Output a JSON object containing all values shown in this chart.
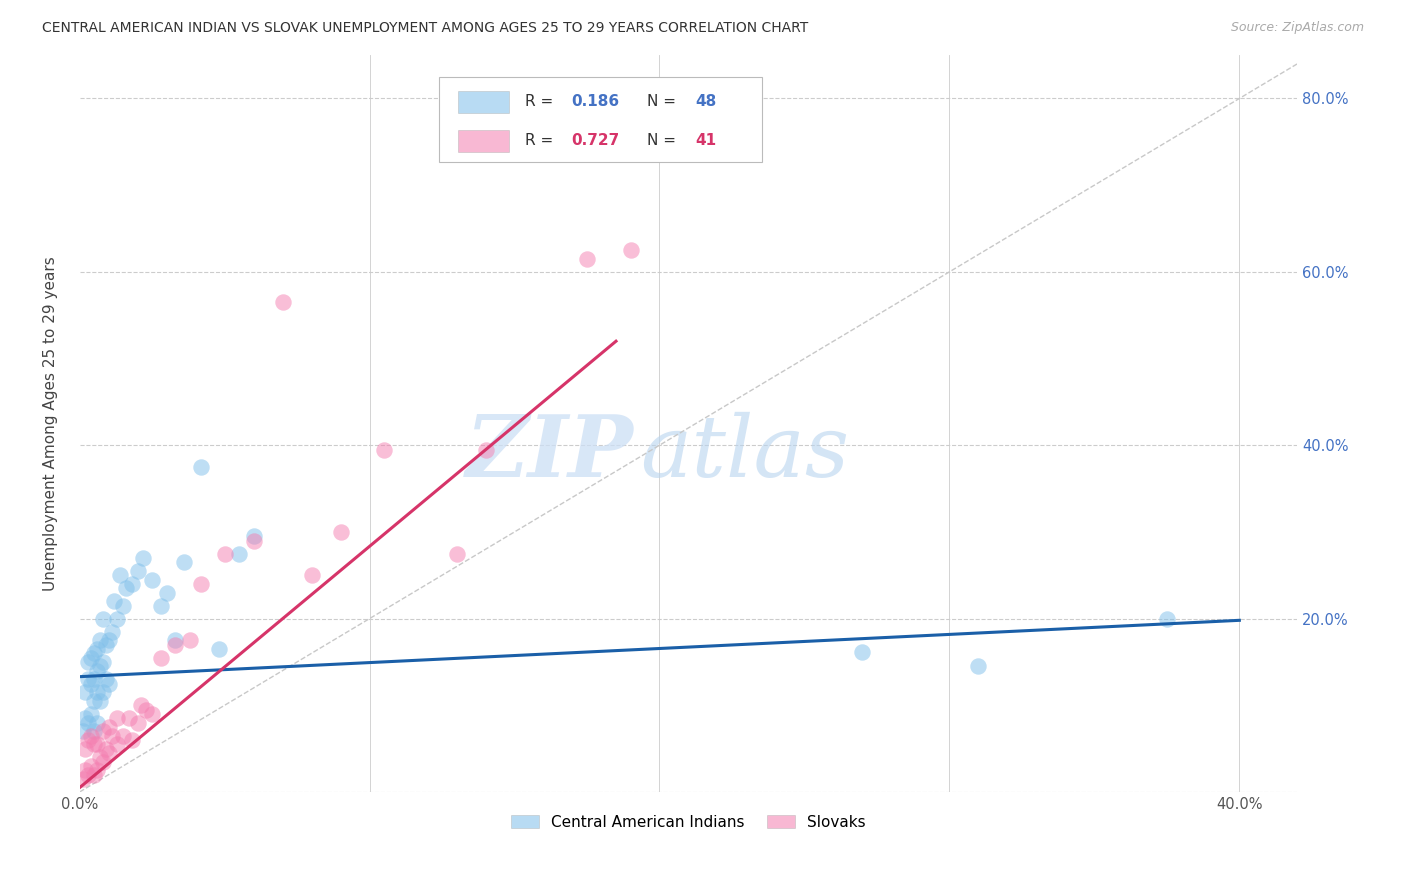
{
  "title": "CENTRAL AMERICAN INDIAN VS SLOVAK UNEMPLOYMENT AMONG AGES 25 TO 29 YEARS CORRELATION CHART",
  "source": "Source: ZipAtlas.com",
  "ylabel": "Unemployment Among Ages 25 to 29 years",
  "xlim": [
    0.0,
    0.42
  ],
  "ylim": [
    0.0,
    0.85
  ],
  "blue_R": 0.186,
  "blue_N": 48,
  "pink_R": 0.727,
  "pink_N": 41,
  "blue_color": "#7fbfea",
  "pink_color": "#f47eb0",
  "blue_label": "Central American Indians",
  "pink_label": "Slovaks",
  "watermark_top": "ZIP",
  "watermark_bot": "atlas",
  "blue_line_x": [
    0.0,
    0.4
  ],
  "blue_line_y": [
    0.133,
    0.198
  ],
  "pink_line_x": [
    0.0,
    0.185
  ],
  "pink_line_y": [
    0.005,
    0.52
  ],
  "ref_line_x": [
    0.0,
    0.42
  ],
  "ref_line_y": [
    0.0,
    0.84
  ],
  "blue_scatter_x": [
    0.001,
    0.002,
    0.002,
    0.003,
    0.003,
    0.003,
    0.004,
    0.004,
    0.004,
    0.005,
    0.005,
    0.005,
    0.005,
    0.006,
    0.006,
    0.006,
    0.006,
    0.007,
    0.007,
    0.007,
    0.008,
    0.008,
    0.008,
    0.009,
    0.009,
    0.01,
    0.01,
    0.011,
    0.012,
    0.013,
    0.014,
    0.015,
    0.016,
    0.018,
    0.02,
    0.022,
    0.025,
    0.028,
    0.03,
    0.033,
    0.036,
    0.042,
    0.048,
    0.055,
    0.06,
    0.27,
    0.31,
    0.375
  ],
  "blue_scatter_y": [
    0.07,
    0.085,
    0.115,
    0.08,
    0.13,
    0.15,
    0.09,
    0.125,
    0.155,
    0.07,
    0.105,
    0.13,
    0.16,
    0.08,
    0.115,
    0.14,
    0.165,
    0.105,
    0.145,
    0.175,
    0.115,
    0.15,
    0.2,
    0.13,
    0.17,
    0.125,
    0.175,
    0.185,
    0.22,
    0.2,
    0.25,
    0.215,
    0.235,
    0.24,
    0.255,
    0.27,
    0.245,
    0.215,
    0.23,
    0.175,
    0.265,
    0.375,
    0.165,
    0.275,
    0.295,
    0.162,
    0.145,
    0.2
  ],
  "pink_scatter_x": [
    0.001,
    0.002,
    0.002,
    0.003,
    0.003,
    0.004,
    0.004,
    0.005,
    0.005,
    0.006,
    0.006,
    0.007,
    0.008,
    0.008,
    0.009,
    0.01,
    0.01,
    0.011,
    0.013,
    0.013,
    0.015,
    0.017,
    0.018,
    0.02,
    0.021,
    0.023,
    0.025,
    0.028,
    0.033,
    0.038,
    0.042,
    0.05,
    0.06,
    0.07,
    0.08,
    0.09,
    0.105,
    0.13,
    0.14,
    0.175,
    0.19
  ],
  "pink_scatter_y": [
    0.015,
    0.025,
    0.05,
    0.02,
    0.06,
    0.03,
    0.065,
    0.02,
    0.055,
    0.025,
    0.055,
    0.04,
    0.035,
    0.07,
    0.05,
    0.045,
    0.075,
    0.065,
    0.055,
    0.085,
    0.065,
    0.085,
    0.06,
    0.08,
    0.1,
    0.095,
    0.09,
    0.155,
    0.17,
    0.175,
    0.24,
    0.275,
    0.29,
    0.565,
    0.25,
    0.3,
    0.395,
    0.275,
    0.395,
    0.615,
    0.625
  ]
}
